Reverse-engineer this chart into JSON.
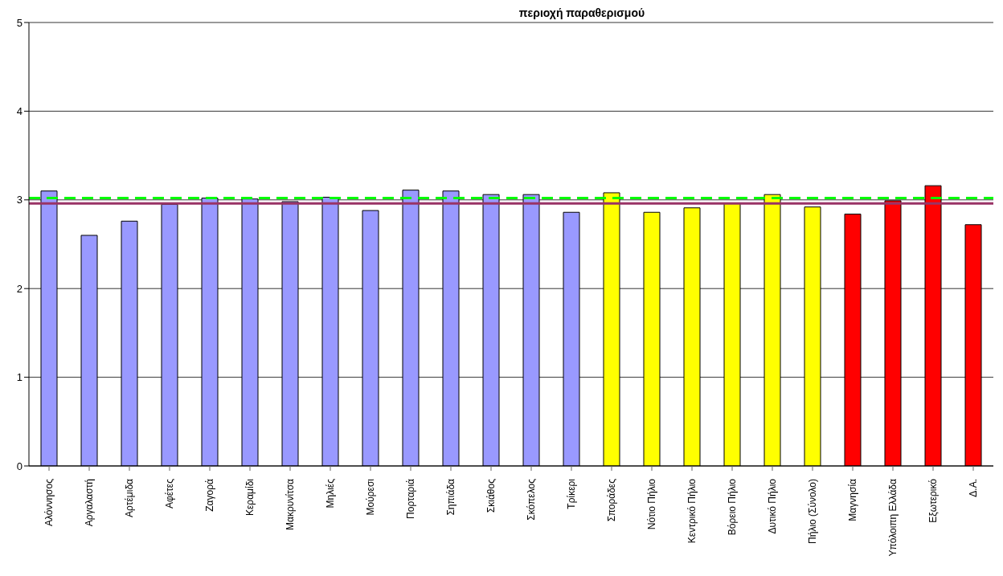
{
  "chart_data": {
    "type": "bar",
    "title": "περιοχή παραθερισμού",
    "categories": [
      "Αλόννησος",
      "Αργαλαστή",
      "Αρτέμιδα",
      "Αφέτες",
      "Ζαγορά",
      "Κεραμίδι",
      "Μακρυνίτσα",
      "Μηλιές",
      "Μούρεσι",
      "Πορταριά",
      "Σηπιάδα",
      "Σκιάθος",
      "Σκόπελος",
      "Τρίκερι",
      "Σποράδες",
      "Νότιο Πήλιο",
      "Κεντρικό Πήλιο",
      "Βόρειο Πήλιο",
      "Δυτικό Πήλιο",
      "Πήλιο (Σύνολο)",
      "Μαγνησία",
      "Υπόλοιπη Ελλάδα",
      "Εξωτερικό",
      "Δ.Α."
    ],
    "values": [
      3.1,
      2.6,
      2.76,
      2.95,
      3.02,
      3.01,
      2.98,
      3.03,
      2.88,
      3.11,
      3.1,
      3.06,
      3.06,
      2.86,
      3.08,
      2.86,
      2.91,
      2.96,
      3.06,
      2.92,
      2.84,
      2.99,
      3.16,
      2.72
    ],
    "colors": [
      "#9999ff",
      "#9999ff",
      "#9999ff",
      "#9999ff",
      "#9999ff",
      "#9999ff",
      "#9999ff",
      "#9999ff",
      "#9999ff",
      "#9999ff",
      "#9999ff",
      "#9999ff",
      "#9999ff",
      "#9999ff",
      "#ffff00",
      "#ffff00",
      "#ffff00",
      "#ffff00",
      "#ffff00",
      "#ffff00",
      "#ff0000",
      "#ff0000",
      "#ff0000",
      "#ff0000"
    ],
    "ylim": [
      0,
      5
    ],
    "yticks": [
      0,
      1,
      2,
      3,
      4,
      5
    ],
    "grid": "y",
    "ref_lines": [
      {
        "axis": "y",
        "value": 3.02,
        "color": "#00ff00",
        "line_style": "dashed"
      },
      {
        "axis": "y",
        "value": 2.96,
        "color": "#993366",
        "line_style": "solid"
      }
    ]
  }
}
